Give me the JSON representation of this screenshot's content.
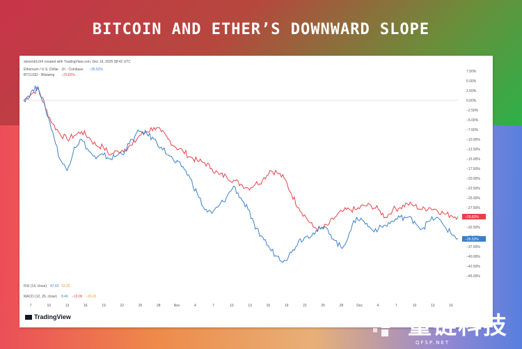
{
  "title": "BITCOIN AND ETHER’S DOWNWARD SLOPE",
  "header_line": "stevenk1ch4 created with TradingView.com, Dec 16, 2025 08:42 UTC",
  "legend": {
    "eth": "Ethereum / U.S. Dollar · 1h · Coinbase",
    "eth_change": "−35.52%",
    "btc": "BTCUSD · Bitstamp",
    "btc_change": "−29.82%"
  },
  "rsi_label": "RSI (14, close)",
  "rsi_values": [
    "47.63",
    "53.05"
  ],
  "macd_label": "MACD (12, 26, close)",
  "macd_values": [
    "8.40",
    "−19.06",
    "−26.02"
  ],
  "tradingview_brand": "TradingView",
  "watermark": {
    "text": "量链科技",
    "sub": "QFSP.NET"
  },
  "colors": {
    "btc": "#e8404a",
    "eth": "#3a7ec9",
    "btc_tag": "#e8404a",
    "eth_tag": "#3a7ec9"
  },
  "chart_data": {
    "type": "line",
    "title": "BITCOIN AND ETHER’S DOWNWARD SLOPE",
    "y_unit": "%",
    "ylim": [
      -45,
      7.5
    ],
    "y_ticks": [
      7.5,
      5,
      2.5,
      0,
      -2.5,
      -5,
      -7.5,
      -10,
      -12.5,
      -15,
      -17.5,
      -20,
      -22.5,
      -25,
      -27.5,
      -30,
      -32.5,
      -35,
      -37.5,
      -40,
      -42.5,
      -45
    ],
    "y_tick_labels": [
      "7.50%",
      "5.00%",
      "2.50%",
      "0.00%",
      "−2.50%",
      "−5.00%",
      "−7.50%",
      "−10.00%",
      "−12.50%",
      "−15.00%",
      "−17.50%",
      "−20.00%",
      "−22.50%",
      "−25.00%",
      "−27.50%",
      "−30.00%",
      "−32.50%",
      "−35.00%",
      "−37.50%",
      "−40.00%",
      "−42.50%",
      "−45.00%"
    ],
    "x_tick_labels": [
      "7",
      "10",
      "13",
      "16",
      "19",
      "22",
      "25",
      "28",
      "Nov",
      "4",
      "7",
      "10",
      "13",
      "16",
      "19",
      "22",
      "25",
      "28",
      "Dec",
      "4",
      "7",
      "10",
      "13",
      "16"
    ],
    "series": [
      {
        "name": "BTCUSD",
        "last_label": "−29.82%",
        "values": [
          0,
          1.5,
          3,
          -2,
          -6,
          -8.5,
          -10,
          -9,
          -8,
          -9.5,
          -11.5,
          -12,
          -14,
          -13,
          -12.5,
          -11.5,
          -9,
          -8,
          -7,
          -8,
          -10,
          -12,
          -13,
          -14.5,
          -15.5,
          -16,
          -17.5,
          -19,
          -19.5,
          -20.5,
          -21.5,
          -22.5,
          -21.5,
          -20.5,
          -18,
          -18.5,
          -20,
          -24,
          -27.5,
          -30,
          -32.5,
          -33,
          -32,
          -30,
          -28.5,
          -28,
          -28,
          -27,
          -27,
          -28,
          -30,
          -28,
          -27.5,
          -26.5,
          -27,
          -28,
          -27.5,
          -28,
          -29,
          -29.5,
          -29.82
        ]
      },
      {
        "name": "Ethereum / U.S. Dollar",
        "last_label": "−35.52%",
        "values": [
          0,
          2,
          3.5,
          -2,
          -8,
          -15,
          -18,
          -12,
          -10,
          -13,
          -15,
          -14,
          -15,
          -14,
          -13,
          -10,
          -8,
          -8.5,
          -10,
          -12,
          -14,
          -16,
          -17,
          -20,
          -24,
          -28,
          -29,
          -27,
          -25,
          -22,
          -25,
          -28,
          -33,
          -35,
          -38,
          -40,
          -41,
          -39,
          -36,
          -35,
          -34,
          -33,
          -33,
          -36,
          -38,
          -34,
          -30,
          -31,
          -33,
          -33,
          -32,
          -31,
          -30,
          -30,
          -31,
          -33,
          -31,
          -30,
          -32,
          -34,
          -35.52
        ]
      }
    ]
  }
}
